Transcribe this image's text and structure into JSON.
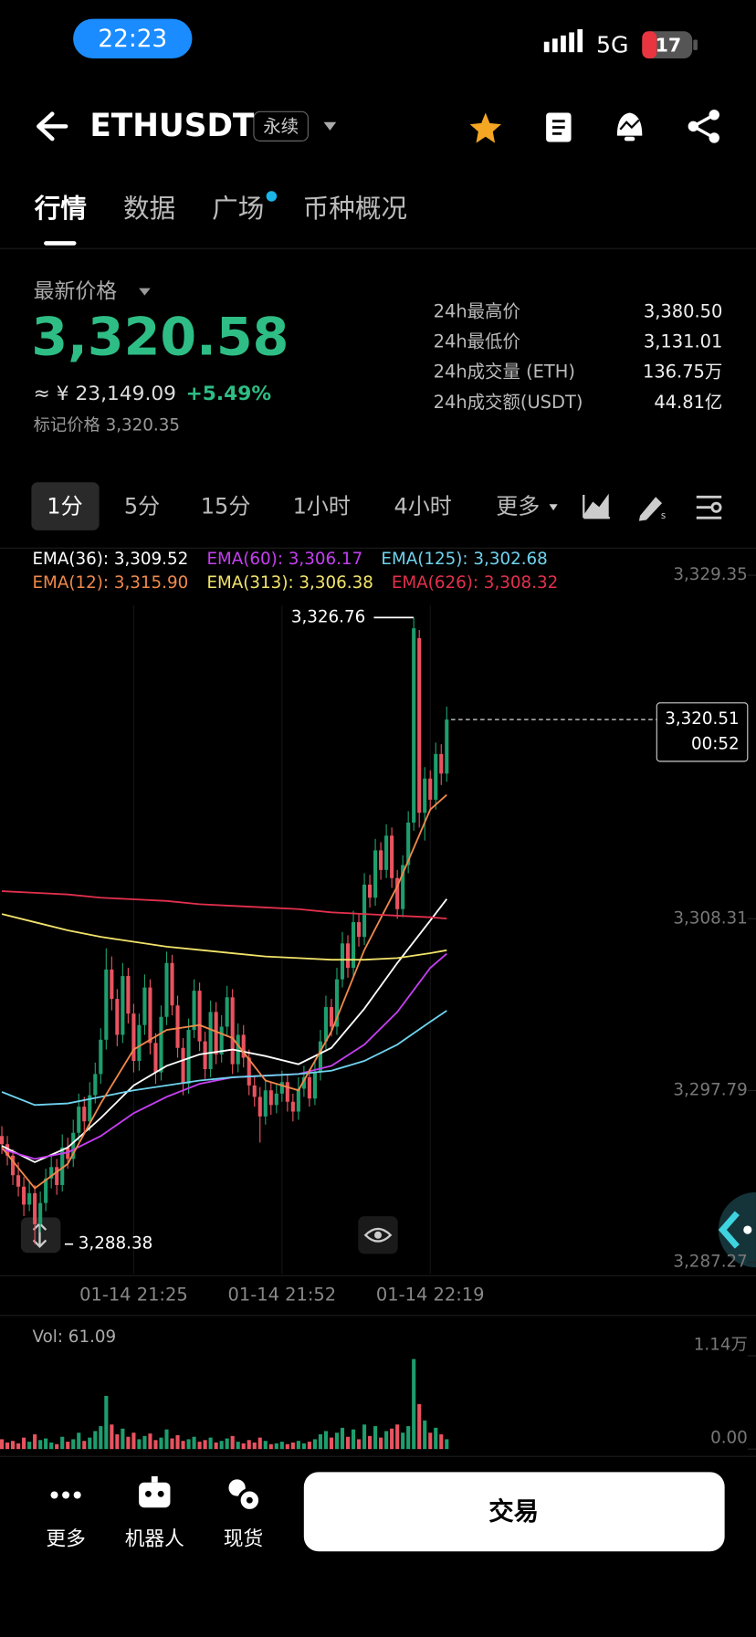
{
  "status_bar": {
    "time": "22:23",
    "network": "5G",
    "battery": "17"
  },
  "header": {
    "symbol": "ETHUSDT",
    "contract_type": "永续"
  },
  "tabs": [
    "行情",
    "数据",
    "广场",
    "币种概况"
  ],
  "ticker": {
    "label": "最新价格",
    "price": "3,320.58",
    "cny": "≈ ¥ 23,149.09",
    "change": "+5.49%",
    "mark_price": "标记价格 3,320.35",
    "stats": [
      {
        "label": "24h最高价",
        "value": "3,380.50"
      },
      {
        "label": "24h最低价",
        "value": "3,131.01"
      },
      {
        "label": "24h成交量 (ETH)",
        "value": "136.75万"
      },
      {
        "label": "24h成交额(USDT)",
        "value": "44.81亿"
      }
    ]
  },
  "intervals": [
    "1分",
    "5分",
    "15分",
    "1小时",
    "4小时",
    "更多"
  ],
  "chart_data": {
    "type": "candlestick",
    "up_color": "#1e9e6e",
    "down_color": "#e8535f",
    "grid": true,
    "xlim": [
      -0.33,
      137.3
    ],
    "ylim": [
      3286.57,
      3330.82
    ],
    "xticks": [
      {
        "value": 24,
        "label": "01-14 21:25"
      },
      {
        "value": 51,
        "label": "01-14 21:52"
      },
      {
        "value": 78,
        "label": "01-14 22:19"
      }
    ],
    "yticks": [
      {
        "value": 3329.35,
        "label": "3,329.35"
      },
      {
        "value": 3308.31,
        "label": "3,308.31"
      },
      {
        "value": 3297.79,
        "label": "3,297.79"
      },
      {
        "value": 3287.27,
        "label": "3,287.27"
      }
    ],
    "high": {
      "value": 3326.76,
      "label": "3,326.76"
    },
    "low": {
      "value": 3288.38,
      "label": "3,288.38"
    },
    "last": {
      "value": 3320.51,
      "label": "3,320.51",
      "countdown": "00:52"
    },
    "candles": [
      [
        3295.0,
        3295.6,
        3293.9,
        3294.5
      ],
      [
        3294.5,
        3295.0,
        3293.2,
        3293.8
      ],
      [
        3293.8,
        3294.2,
        3292.0,
        3292.6
      ],
      [
        3292.6,
        3293.4,
        3291.3,
        3291.9
      ],
      [
        3291.9,
        3292.5,
        3290.1,
        3290.8
      ],
      [
        3290.8,
        3292.3,
        3290.4,
        3291.5
      ],
      [
        3291.5,
        3292.0,
        3288.38,
        3289.6
      ],
      [
        3289.6,
        3291.6,
        3289.1,
        3290.9
      ],
      [
        3290.9,
        3293.0,
        3290.4,
        3292.4
      ],
      [
        3292.4,
        3293.9,
        3291.8,
        3293.1
      ],
      [
        3293.1,
        3293.6,
        3291.4,
        3292.0
      ],
      [
        3292.0,
        3295.1,
        3291.6,
        3294.3
      ],
      [
        3294.3,
        3294.9,
        3293.0,
        3293.6
      ],
      [
        3293.6,
        3296.0,
        3293.1,
        3295.2
      ],
      [
        3295.2,
        3297.6,
        3294.7,
        3296.8
      ],
      [
        3296.8,
        3297.4,
        3295.2,
        3295.9
      ],
      [
        3295.9,
        3298.3,
        3295.3,
        3297.5
      ],
      [
        3297.5,
        3299.5,
        3297.0,
        3298.8
      ],
      [
        3298.8,
        3301.6,
        3298.2,
        3300.9
      ],
      [
        3300.9,
        3306.5,
        3300.3,
        3305.2
      ],
      [
        3305.2,
        3306.0,
        3302.7,
        3303.4
      ],
      [
        3303.4,
        3304.0,
        3300.5,
        3301.2
      ],
      [
        3301.2,
        3305.6,
        3300.7,
        3304.8
      ],
      [
        3304.8,
        3305.3,
        3301.9,
        3302.5
      ],
      [
        3302.5,
        3303.1,
        3298.9,
        3299.6
      ],
      [
        3299.6,
        3302.5,
        3299.0,
        3301.8
      ],
      [
        3301.8,
        3304.9,
        3301.2,
        3304.1
      ],
      [
        3304.1,
        3304.6,
        3300.0,
        3300.7
      ],
      [
        3300.7,
        3301.3,
        3298.2,
        3298.9
      ],
      [
        3298.9,
        3303.0,
        3298.4,
        3302.3
      ],
      [
        3302.3,
        3306.3,
        3301.8,
        3305.6
      ],
      [
        3305.6,
        3306.1,
        3302.4,
        3303.0
      ],
      [
        3303.0,
        3303.6,
        3299.8,
        3300.4
      ],
      [
        3300.4,
        3301.0,
        3297.5,
        3298.2
      ],
      [
        3298.2,
        3302.2,
        3297.6,
        3301.5
      ],
      [
        3301.5,
        3304.6,
        3301.0,
        3303.9
      ],
      [
        3303.9,
        3304.4,
        3300.2,
        3300.8
      ],
      [
        3300.8,
        3301.4,
        3298.5,
        3299.1
      ],
      [
        3299.1,
        3303.3,
        3298.6,
        3302.6
      ],
      [
        3302.6,
        3303.2,
        3299.4,
        3300.0
      ],
      [
        3300.0,
        3302.4,
        3299.5,
        3301.7
      ],
      [
        3301.7,
        3304.2,
        3301.1,
        3303.5
      ],
      [
        3303.5,
        3304.0,
        3298.8,
        3299.4
      ],
      [
        3299.4,
        3301.9,
        3298.9,
        3301.2
      ],
      [
        3301.2,
        3301.8,
        3299.2,
        3299.8
      ],
      [
        3299.8,
        3300.3,
        3297.5,
        3298.1
      ],
      [
        3298.1,
        3298.7,
        3296.8,
        3297.4
      ],
      [
        3297.4,
        3298.0,
        3294.6,
        3296.2
      ],
      [
        3296.2,
        3298.5,
        3295.7,
        3297.8
      ],
      [
        3297.8,
        3298.3,
        3296.3,
        3296.9
      ],
      [
        3296.9,
        3298.2,
        3296.4,
        3297.6
      ],
      [
        3297.6,
        3299.0,
        3297.1,
        3298.3
      ],
      [
        3298.3,
        3298.8,
        3296.5,
        3297.1
      ],
      [
        3297.1,
        3297.6,
        3295.9,
        3296.5
      ],
      [
        3296.5,
        3298.6,
        3296.0,
        3297.9
      ],
      [
        3297.9,
        3299.3,
        3297.4,
        3298.6
      ],
      [
        3298.6,
        3299.1,
        3296.8,
        3297.3
      ],
      [
        3297.3,
        3299.6,
        3296.9,
        3298.9
      ],
      [
        3298.9,
        3301.5,
        3298.4,
        3300.8
      ],
      [
        3300.8,
        3303.6,
        3300.3,
        3302.9
      ],
      [
        3302.9,
        3303.4,
        3301.1,
        3301.7
      ],
      [
        3301.7,
        3305.3,
        3301.2,
        3304.6
      ],
      [
        3304.6,
        3307.5,
        3304.1,
        3306.8
      ],
      [
        3306.8,
        3307.3,
        3304.7,
        3305.3
      ],
      [
        3305.3,
        3308.8,
        3304.8,
        3308.1
      ],
      [
        3308.1,
        3308.6,
        3306.6,
        3307.2
      ],
      [
        3307.2,
        3311.1,
        3306.7,
        3310.4
      ],
      [
        3310.4,
        3311.0,
        3309.0,
        3309.6
      ],
      [
        3309.6,
        3313.2,
        3309.1,
        3312.5
      ],
      [
        3312.5,
        3313.0,
        3310.7,
        3311.3
      ],
      [
        3311.3,
        3314.1,
        3310.8,
        3313.4
      ],
      [
        3313.4,
        3313.9,
        3310.2,
        3310.8
      ],
      [
        3310.8,
        3311.3,
        3308.3,
        3308.9
      ],
      [
        3308.9,
        3312.2,
        3308.4,
        3311.6
      ],
      [
        3311.6,
        3314.9,
        3311.1,
        3314.2
      ],
      [
        3314.2,
        3326.76,
        3313.7,
        3326.1
      ],
      [
        3325.5,
        3326.0,
        3313.9,
        3314.8
      ],
      [
        3314.8,
        3317.6,
        3313.1,
        3316.9
      ],
      [
        3316.9,
        3317.4,
        3314.9,
        3315.6
      ],
      [
        3315.6,
        3319.1,
        3315.0,
        3318.4
      ],
      [
        3318.4,
        3319.0,
        3316.5,
        3317.2
      ],
      [
        3317.2,
        3321.3,
        3316.7,
        3320.51
      ]
    ],
    "ema_x": [
      0,
      6,
      12,
      18,
      24,
      30,
      36,
      42,
      48,
      54,
      60,
      66,
      72,
      78,
      81
    ],
    "ema": [
      {
        "name": "EMA(36): 3,309.52",
        "color": "#ffffff",
        "values": [
          3294.4,
          3293.4,
          3294.3,
          3296.1,
          3298.1,
          3299.3,
          3300.0,
          3300.3,
          3299.9,
          3299.4,
          3300.4,
          3302.8,
          3305.6,
          3308.2,
          3309.52
        ]
      },
      {
        "name": "EMA(60): 3,306.17",
        "color": "#c43ff0",
        "values": [
          3294.2,
          3293.6,
          3294.0,
          3295.0,
          3296.4,
          3297.4,
          3298.2,
          3298.6,
          3298.7,
          3298.8,
          3299.3,
          3300.6,
          3302.6,
          3305.3,
          3306.17
        ]
      },
      {
        "name": "EMA(125): 3,302.68",
        "color": "#6fd3ee",
        "values": [
          3297.7,
          3296.9,
          3297.0,
          3297.4,
          3297.8,
          3298.1,
          3298.4,
          3298.6,
          3298.7,
          3298.8,
          3299.0,
          3299.6,
          3300.6,
          3302.0,
          3302.68
        ]
      },
      {
        "name": "EMA(12): 3,315.90",
        "color": "#f0894a",
        "values": [
          3294.3,
          3291.8,
          3293.3,
          3297.0,
          3300.3,
          3301.5,
          3301.8,
          3301.0,
          3298.4,
          3297.8,
          3301.4,
          3306.4,
          3310.3,
          3315.0,
          3315.9
        ]
      },
      {
        "name": "EMA(313): 3,306.38",
        "color": "#f2e46a",
        "values": [
          3308.6,
          3308.1,
          3307.6,
          3307.2,
          3306.9,
          3306.6,
          3306.4,
          3306.2,
          3306.0,
          3305.9,
          3305.8,
          3305.8,
          3305.9,
          3306.2,
          3306.38
        ]
      },
      {
        "name": "EMA(626): 3,308.32",
        "color": "#e3304d",
        "values": [
          3310.0,
          3309.9,
          3309.8,
          3309.6,
          3309.5,
          3309.4,
          3309.2,
          3309.1,
          3309.0,
          3308.9,
          3308.7,
          3308.6,
          3308.5,
          3308.4,
          3308.32
        ]
      }
    ],
    "volume": {
      "label": "Vol: 61.09",
      "ylim": [
        0,
        1.25
      ],
      "yticks": [
        {
          "value": 1.14,
          "label": "1.14万"
        },
        {
          "value": 0,
          "label": "0.00"
        }
      ],
      "values": [
        0.12,
        0.08,
        0.1,
        0.07,
        0.14,
        0.09,
        0.18,
        0.11,
        0.13,
        0.08,
        0.06,
        0.15,
        0.09,
        0.12,
        0.2,
        0.1,
        0.14,
        0.22,
        0.28,
        0.65,
        0.3,
        0.18,
        0.25,
        0.15,
        0.2,
        0.12,
        0.16,
        0.19,
        0.11,
        0.14,
        0.24,
        0.13,
        0.17,
        0.1,
        0.12,
        0.15,
        0.09,
        0.11,
        0.14,
        0.08,
        0.1,
        0.13,
        0.16,
        0.09,
        0.07,
        0.11,
        0.08,
        0.14,
        0.1,
        0.06,
        0.07,
        0.09,
        0.06,
        0.08,
        0.1,
        0.07,
        0.09,
        0.12,
        0.18,
        0.22,
        0.14,
        0.2,
        0.26,
        0.15,
        0.24,
        0.12,
        0.3,
        0.16,
        0.28,
        0.14,
        0.22,
        0.25,
        0.3,
        0.2,
        0.28,
        1.1,
        0.55,
        0.35,
        0.2,
        0.26,
        0.18,
        0.12
      ]
    }
  },
  "bottom_nav": [
    "更多",
    "机器人",
    "现货"
  ],
  "trade_button": "交易"
}
